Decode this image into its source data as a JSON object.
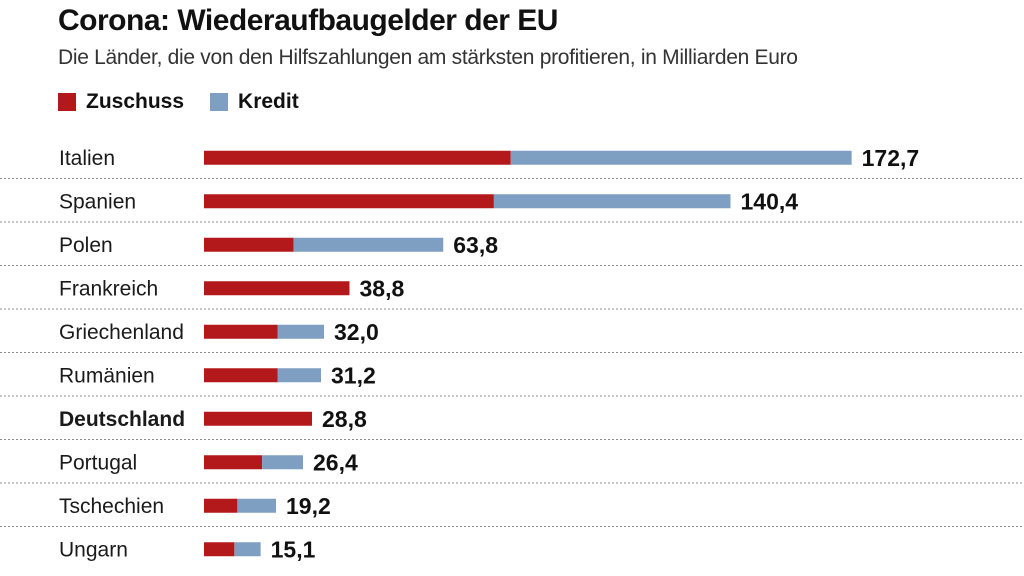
{
  "chart_data": {
    "type": "bar",
    "orientation": "horizontal",
    "stacked": true,
    "title": "Corona: Wiederaufbaugelder der EU",
    "subtitle": "Die Länder, die von den Hilfszahlungen am stärksten profitieren, in Milliarden Euro",
    "categories": [
      "Italien",
      "Spanien",
      "Polen",
      "Frankreich",
      "Griechenland",
      "Rumänien",
      "Deutschland",
      "Portugal",
      "Tschechien",
      "Ungarn"
    ],
    "highlighted_category": "Deutschland",
    "series": [
      {
        "name": "Zuschuss",
        "color": "#b3191a",
        "values": [
          81.8,
          77.3,
          23.9,
          38.8,
          19.6,
          19.6,
          28.8,
          15.5,
          8.9,
          8.1
        ]
      },
      {
        "name": "Kredit",
        "color": "#7e9fc2",
        "values": [
          90.9,
          63.1,
          39.9,
          0,
          12.4,
          11.6,
          0,
          10.9,
          10.3,
          7.0
        ]
      }
    ],
    "totals": [
      "172,7",
      "140,4",
      "63,8",
      "38,8",
      "32,0",
      "31,2",
      "28,8",
      "26,4",
      "19,2",
      "15,1"
    ],
    "legend_position": "top-left",
    "xlim": [
      0,
      180
    ],
    "grid": false
  }
}
